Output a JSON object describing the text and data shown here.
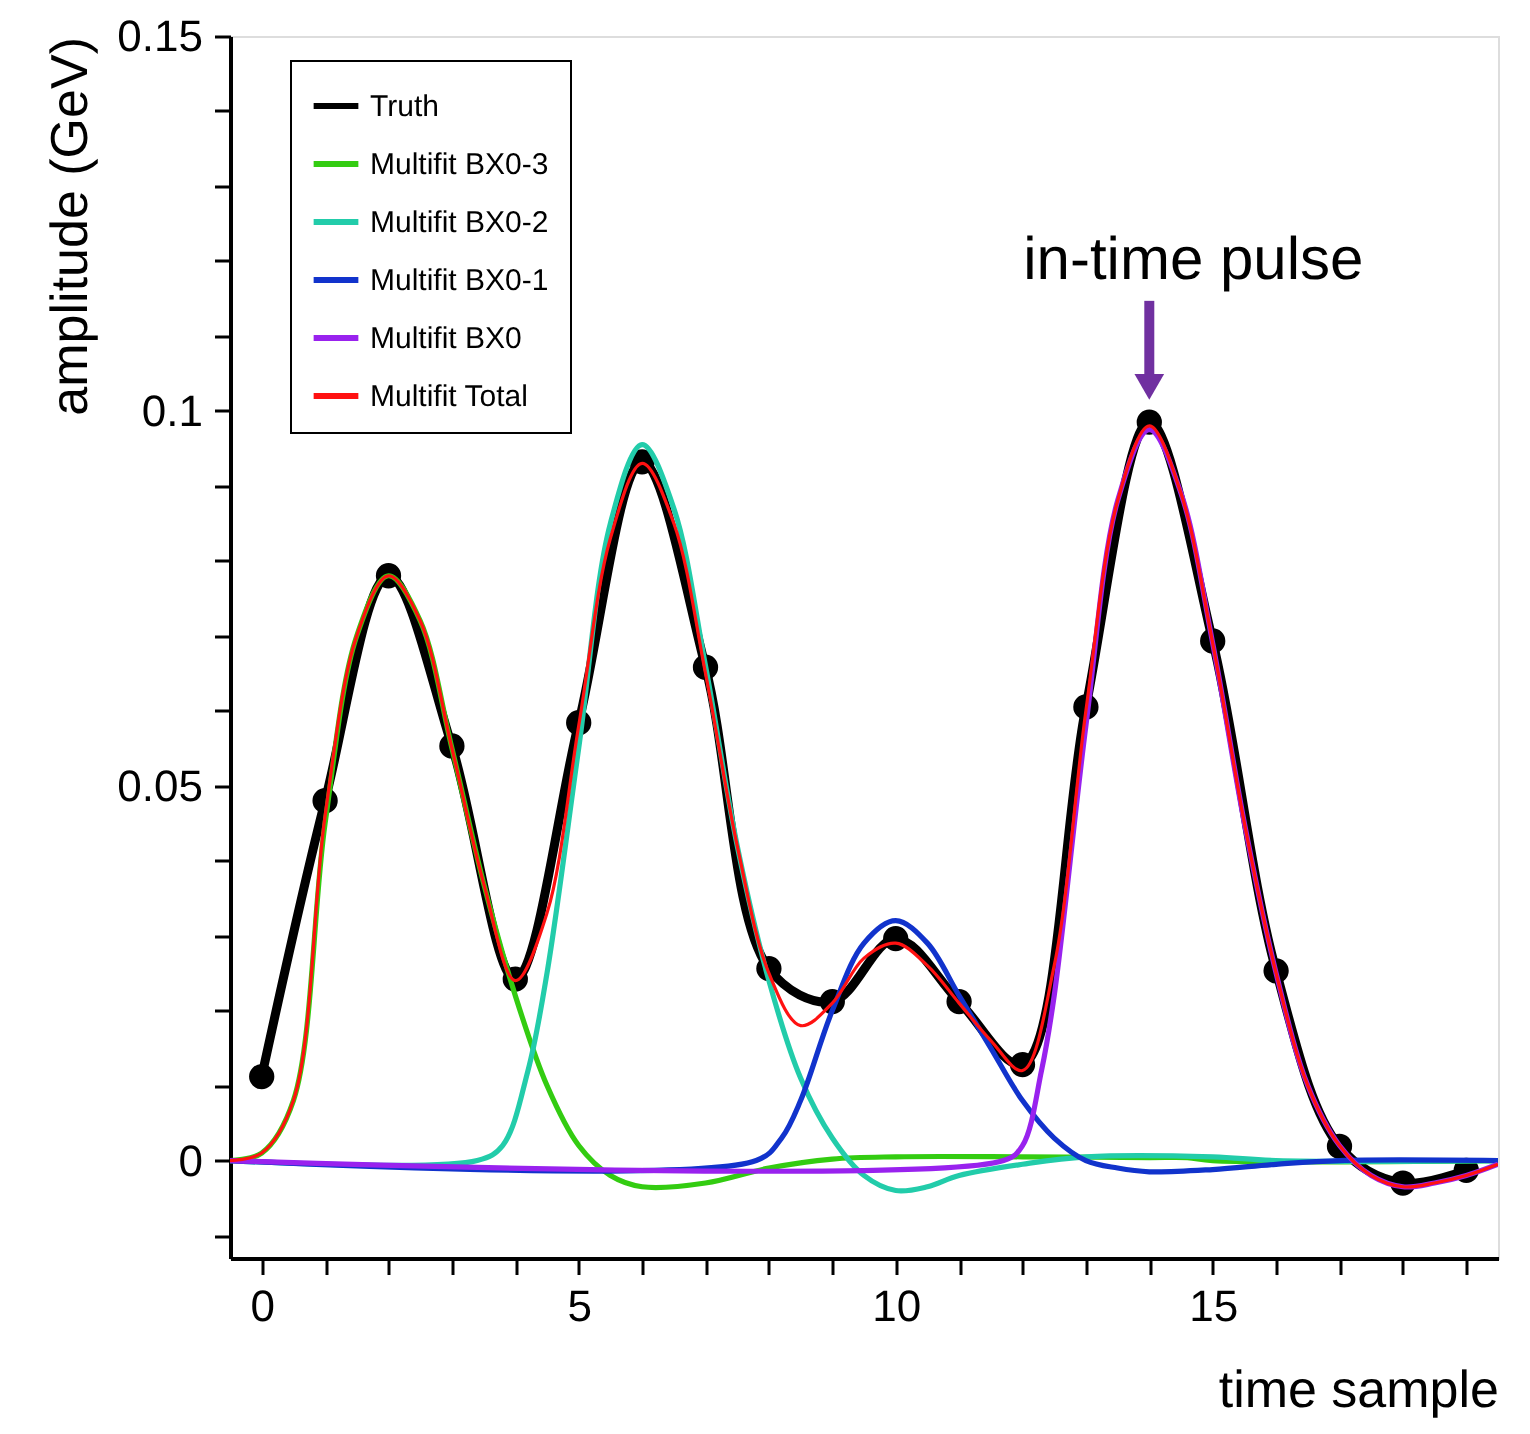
{
  "chart_data": {
    "type": "line",
    "xlabel": "time sample",
    "ylabel": "amplitude (GeV)",
    "xlim": [
      -0.5,
      19.5
    ],
    "xticks": [
      0,
      {
        "value": 1,
        "label": null
      },
      {
        "value": 2,
        "label": null
      },
      {
        "value": 3,
        "label": null
      },
      {
        "value": 4,
        "label": null
      },
      5,
      {
        "value": 6,
        "label": null
      },
      {
        "value": 7,
        "label": null
      },
      {
        "value": 8,
        "label": null
      },
      {
        "value": 9,
        "label": null
      },
      10,
      {
        "value": 11,
        "label": null
      },
      {
        "value": 12,
        "label": null
      },
      {
        "value": 13,
        "label": null
      },
      {
        "value": 14,
        "label": null
      },
      15,
      {
        "value": 16,
        "label": null
      },
      {
        "value": 17,
        "label": null
      },
      {
        "value": 18,
        "label": null
      },
      {
        "value": 19,
        "label": null
      }
    ],
    "ylim": [
      -0.013,
      0.15
    ],
    "yticks": [
      {
        "value": -0.01,
        "label": null
      },
      0,
      {
        "value": 0.01,
        "label": null
      },
      {
        "value": 0.02,
        "label": null
      },
      {
        "value": 0.03,
        "label": null
      },
      {
        "value": 0.04,
        "label": null
      },
      0.05,
      {
        "value": 0.06,
        "label": null
      },
      {
        "value": 0.07,
        "label": null
      },
      {
        "value": 0.08,
        "label": null
      },
      {
        "value": 0.09,
        "label": null
      },
      0.1,
      {
        "value": 0.11,
        "label": null
      },
      {
        "value": 0.12,
        "label": null
      },
      {
        "value": 0.13,
        "label": null
      },
      {
        "value": 0.14,
        "label": null
      },
      0.15
    ],
    "grid": false,
    "legend": "top left",
    "line_style": "solid",
    "annotations": [
      {
        "text": "in-time pulse",
        "x": 14,
        "y": 0.1
      }
    ],
    "series": [
      {
        "name": "Truth",
        "color": "#000000",
        "marker": "circle",
        "x": [
          0,
          1,
          2,
          3,
          4,
          5,
          6,
          7,
          8,
          9,
          10,
          11,
          12,
          13,
          14,
          15,
          16,
          17,
          18,
          19
        ],
        "values": [
          0.0112,
          0.048,
          0.078,
          0.0553,
          0.0242,
          0.0584,
          0.0932,
          0.0658,
          0.0256,
          0.0212,
          0.0296,
          0.0212,
          0.0128,
          0.0605,
          0.0985,
          0.0693,
          0.0253,
          0.0019,
          -0.003,
          -0.0013
        ]
      },
      {
        "name": "Multifit BX0-3",
        "color": "#33cc11",
        "x": [
          -0.5,
          0,
          0.5,
          1,
          1.5,
          2,
          2.5,
          3,
          3.5,
          4,
          4.5,
          5,
          5.5,
          6,
          7,
          8,
          9,
          10,
          12,
          14,
          14.6,
          15,
          19.5
        ],
        "values": [
          0,
          0.001,
          0.008,
          0.045,
          0.07,
          0.078,
          0.072,
          0.055,
          0.037,
          0.022,
          0.01,
          0.002,
          -0.002,
          -0.0035,
          -0.003,
          -0.001,
          0.0002,
          0.0005,
          0.0005,
          0.0004,
          0.0004,
          0,
          0
        ]
      },
      {
        "name": "Multifit BX0-2",
        "color": "#22ccaa",
        "x": [
          -0.5,
          3.4,
          3.8,
          4.2,
          4.5,
          5,
          5.5,
          6,
          6.5,
          7,
          7.5,
          8,
          8.5,
          9,
          9.5,
          10,
          10.5,
          11,
          12,
          13,
          15,
          16,
          19.5
        ],
        "values": [
          0,
          0,
          0.002,
          0.012,
          0.025,
          0.055,
          0.085,
          0.0955,
          0.087,
          0.066,
          0.042,
          0.024,
          0.011,
          0.003,
          -0.002,
          -0.004,
          -0.0035,
          -0.002,
          -0.0005,
          0.0005,
          0.0005,
          0,
          0
        ]
      },
      {
        "name": "Multifit BX0-1",
        "color": "#1133cc",
        "x": [
          -0.5,
          7.8,
          8.2,
          8.5,
          9,
          9.5,
          10,
          10.5,
          11,
          11.5,
          12,
          12.5,
          13,
          13.5,
          14,
          15,
          16,
          17,
          19.5
        ],
        "values": [
          0,
          0,
          0.003,
          0.008,
          0.02,
          0.029,
          0.032,
          0.029,
          0.022,
          0.015,
          0.008,
          0.003,
          0,
          -0.001,
          -0.0015,
          -0.0012,
          -0.0005,
          0,
          0
        ]
      },
      {
        "name": "Multifit BX0",
        "color": "#9922ee",
        "x": [
          -0.5,
          11.7,
          12,
          12.3,
          12.5,
          13,
          13.5,
          14,
          14.5,
          15,
          15.5,
          16,
          16.5,
          17,
          17.5,
          18,
          18.5,
          19,
          19.5
        ],
        "values": [
          0,
          0,
          0.002,
          0.012,
          0.022,
          0.058,
          0.088,
          0.0975,
          0.089,
          0.069,
          0.045,
          0.025,
          0.01,
          0.002,
          -0.002,
          -0.0035,
          -0.003,
          -0.002,
          -0.0005
        ]
      },
      {
        "name": "Multifit Total",
        "color": "#ff1111",
        "x": [
          -0.5,
          0,
          0.5,
          1,
          1.5,
          2,
          2.5,
          3,
          3.5,
          4,
          4.5,
          5,
          5.5,
          6,
          6.5,
          7,
          7.5,
          8,
          8.5,
          9,
          9.5,
          10,
          10.5,
          11,
          11.5,
          12,
          12.5,
          13,
          13.5,
          14,
          14.5,
          15,
          15.5,
          16,
          16.5,
          17,
          17.5,
          18,
          18.5,
          19,
          19.5
        ],
        "values": [
          0,
          0.001,
          0.008,
          0.046,
          0.07,
          0.078,
          0.072,
          0.055,
          0.037,
          0.024,
          0.033,
          0.058,
          0.083,
          0.093,
          0.085,
          0.065,
          0.042,
          0.025,
          0.018,
          0.021,
          0.027,
          0.029,
          0.026,
          0.021,
          0.016,
          0.012,
          0.026,
          0.06,
          0.088,
          0.098,
          0.089,
          0.069,
          0.045,
          0.025,
          0.01,
          0.002,
          -0.002,
          -0.0035,
          -0.003,
          -0.002,
          -0.0005
        ]
      }
    ]
  }
}
